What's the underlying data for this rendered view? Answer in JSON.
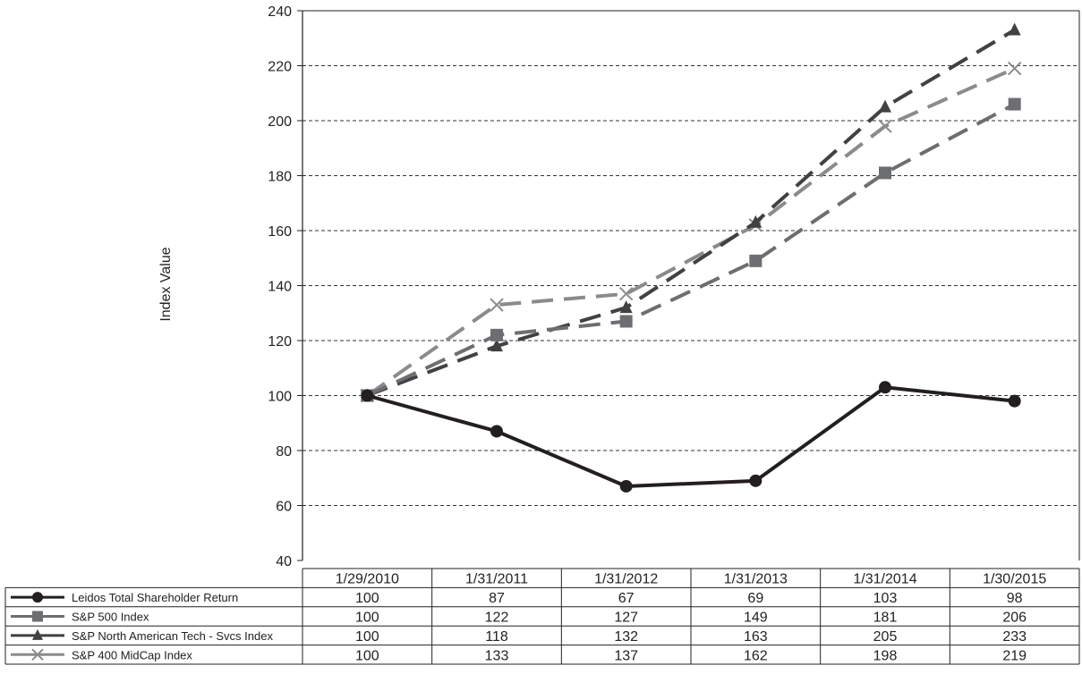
{
  "chart_data": {
    "type": "line",
    "title": "",
    "ylabel": "Index Value",
    "xlabel": "",
    "ylim": [
      40,
      240
    ],
    "yticks": [
      40,
      60,
      80,
      100,
      120,
      140,
      160,
      180,
      200,
      220,
      240
    ],
    "grid": "horizontal-dashed",
    "categories": [
      "1/29/2010",
      "1/31/2011",
      "1/31/2012",
      "1/31/2013",
      "1/31/2014",
      "1/30/2015"
    ],
    "series": [
      {
        "name": "Leidos Total Shareholder Return",
        "values": [
          100,
          87,
          67,
          69,
          103,
          98
        ],
        "color": "#231f20",
        "marker": "circle",
        "line": "solid"
      },
      {
        "name": "S&P 500 Index",
        "values": [
          100,
          122,
          127,
          149,
          181,
          206
        ],
        "color": "#6d6e71",
        "marker": "square",
        "line": "dashed"
      },
      {
        "name": "S&P North American Tech - Svcs Index",
        "values": [
          100,
          118,
          132,
          163,
          205,
          233
        ],
        "color": "#414042",
        "marker": "triangle",
        "line": "dashed"
      },
      {
        "name": "S&P 400 MidCap Index",
        "values": [
          100,
          133,
          137,
          162,
          198,
          219
        ],
        "color": "#8a8b8d",
        "marker": "x",
        "line": "dashed"
      }
    ]
  }
}
